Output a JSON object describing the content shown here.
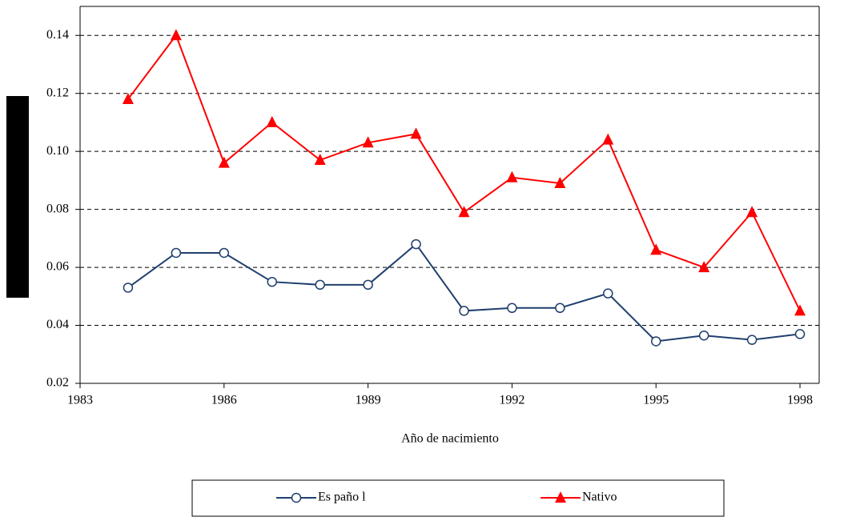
{
  "chart_data": {
    "type": "line",
    "x_label": "Año de nacimiento",
    "x": [
      1984,
      1985,
      1986,
      1987,
      1988,
      1989,
      1990,
      1991,
      1992,
      1993,
      1994,
      1995,
      1996,
      1997,
      1998
    ],
    "series": [
      {
        "name": "Es paño l",
        "color": "#1f3f6e",
        "marker": "circle",
        "values": [
          0.053,
          0.065,
          0.065,
          0.055,
          0.054,
          0.054,
          0.068,
          0.045,
          0.046,
          0.046,
          0.051,
          0.0345,
          0.0365,
          0.035,
          0.037
        ]
      },
      {
        "name": "Nativo",
        "color": "#ff0000",
        "marker": "triangle",
        "values": [
          0.118,
          0.14,
          0.096,
          0.11,
          0.097,
          0.103,
          0.106,
          0.079,
          0.091,
          0.089,
          0.104,
          0.066,
          0.06,
          0.079,
          0.045
        ]
      }
    ],
    "xlim": [
      1983,
      1998.4
    ],
    "xticks": [
      1983,
      1986,
      1989,
      1992,
      1995,
      1998
    ],
    "ylim": [
      0.02,
      0.15
    ],
    "yticks": [
      0.02,
      0.04,
      0.06,
      0.08,
      {
        "value": 0.1,
        "label": "0.10"
      },
      0.12,
      0.14
    ],
    "grid": true,
    "legend": "bottom"
  }
}
